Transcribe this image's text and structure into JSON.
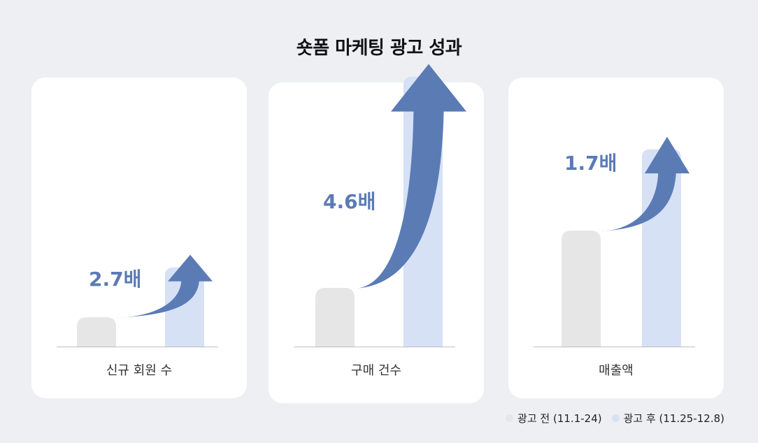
{
  "chart_data": {
    "type": "bar",
    "title": "숏폼 마케팅 광고 성과",
    "legend_position": "bottom-right",
    "series": [
      {
        "name": "광고 전 (11.1-24)",
        "color": "#e6e6e6"
      },
      {
        "name": "광고 후 (11.25-12.8)",
        "color": "#d6e1f5"
      }
    ],
    "arrow_color": "#5b7bb5",
    "panels": [
      {
        "category": "신규 회원 수",
        "before": 1,
        "after": 2.7,
        "multiplier_label": "2.7배"
      },
      {
        "category": "구매 건수",
        "before": 1,
        "after": 4.6,
        "multiplier_label": "4.6배"
      },
      {
        "category": "매출액",
        "before": 1,
        "after": 1.7,
        "multiplier_label": "1.7배"
      }
    ]
  }
}
